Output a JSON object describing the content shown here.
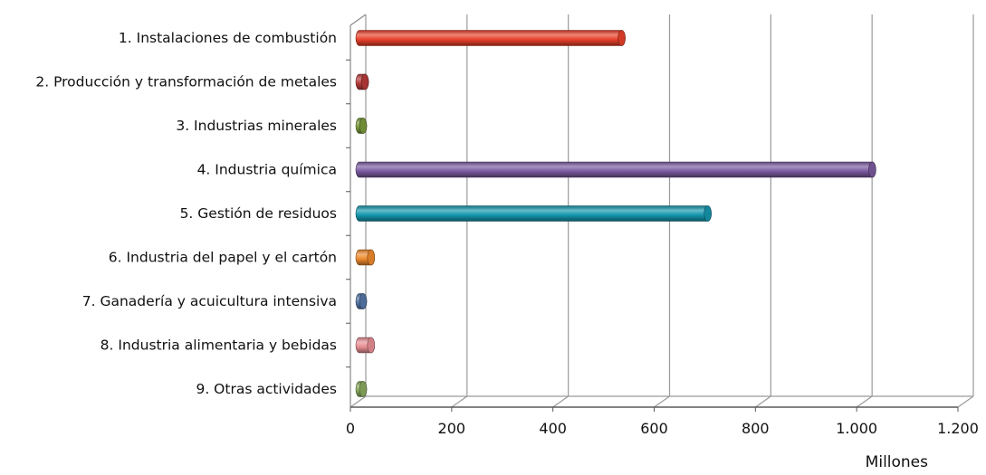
{
  "chart_data": {
    "type": "bar",
    "orientation": "horizontal",
    "style": "3d-cylinder",
    "categories": [
      "1. Instalaciones de combustión",
      "2. Producción y transformación de metales",
      "3. Industrias minerales",
      "4. Industria química",
      "5. Gestión de residuos",
      "6. Industria del papel y el cartón",
      "7. Ganadería y acuicultura intensiva",
      "8. Industria alimentaria y bebidas",
      "9. Otras actividades"
    ],
    "values": [
      525,
      18,
      8,
      1020,
      695,
      30,
      4,
      30,
      8
    ],
    "colors": [
      "#e8402a",
      "#b83a3a",
      "#7a9a3c",
      "#7b5aa0",
      "#1596ad",
      "#ee8a2e",
      "#5577a8",
      "#e88f95",
      "#8aab5e"
    ],
    "xticks": [
      "0",
      "200",
      "400",
      "600",
      "800",
      "1.000",
      "1.200"
    ],
    "xlim": [
      0,
      1200
    ],
    "xlabel": "Millones",
    "title": "",
    "grid": true,
    "legend": "none"
  }
}
